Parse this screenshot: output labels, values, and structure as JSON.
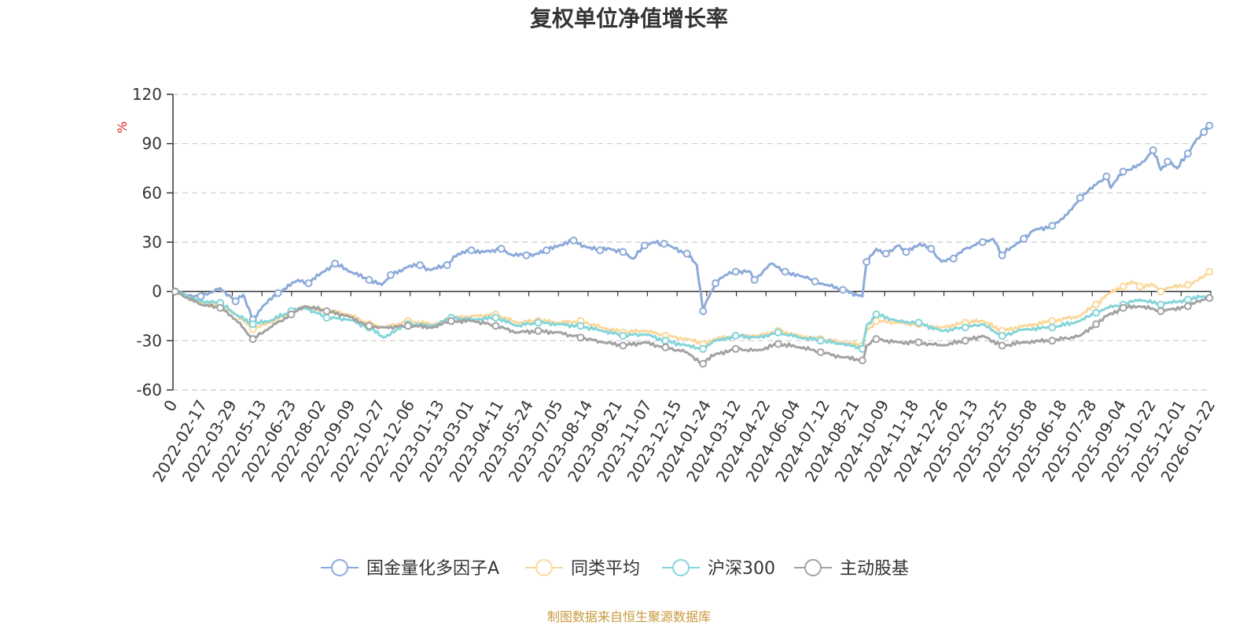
{
  "chart_data": {
    "type": "line",
    "title": "复权单位净值增长率",
    "ylabel": "%",
    "ylim": [
      -60,
      120
    ],
    "yticks": [
      120,
      90,
      60,
      30,
      0,
      -30,
      -60
    ],
    "xlim": [
      "2022-01-01",
      "2026-02-01"
    ],
    "xticks": [
      "0",
      "2022-02-17",
      "2022-03-29",
      "2022-05-13",
      "2022-06-23",
      "2022-08-02",
      "2022-09-09",
      "2022-10-27",
      "2022-12-06",
      "2023-01-13",
      "2023-03-01",
      "2023-04-11",
      "2023-05-24",
      "2023-07-05",
      "2023-08-14",
      "2023-09-21",
      "2023-11-07",
      "2023-12-15",
      "2024-01-24",
      "2024-03-12",
      "2024-04-22",
      "2024-06-04",
      "2024-07-12",
      "2024-08-21",
      "2024-10-09",
      "2024-11-18",
      "2024-12-26",
      "2025-02-13",
      "2025-03-25",
      "2025-05-08",
      "2025-06-18",
      "2025-07-28",
      "2025-09-04",
      "2025-10-22",
      "2025-12-01",
      "2026-01-22"
    ],
    "grid": true,
    "legend_position": "bottom",
    "source": "制图数据来自恒生聚源数据库",
    "series": [
      {
        "name": "国金量化多因子A",
        "color": "#8caad9",
        "points": [
          [
            "2022-01-04",
            0
          ],
          [
            "2022-01-20",
            -2
          ],
          [
            "2022-02-10",
            -3
          ],
          [
            "2022-03-10",
            2
          ],
          [
            "2022-04-01",
            -6
          ],
          [
            "2022-04-12",
            -2
          ],
          [
            "2022-04-26",
            -17
          ],
          [
            "2022-05-10",
            -9
          ],
          [
            "2022-06-01",
            -1
          ],
          [
            "2022-06-30",
            7
          ],
          [
            "2022-07-15",
            5
          ],
          [
            "2022-08-05",
            12
          ],
          [
            "2022-08-22",
            17
          ],
          [
            "2022-09-13",
            12
          ],
          [
            "2022-10-10",
            7
          ],
          [
            "2022-10-28",
            4
          ],
          [
            "2022-11-10",
            10
          ],
          [
            "2022-12-05",
            15
          ],
          [
            "2022-12-22",
            16
          ],
          [
            "2023-01-06",
            13
          ],
          [
            "2023-01-30",
            16
          ],
          [
            "2023-02-15",
            23
          ],
          [
            "2023-03-06",
            25
          ],
          [
            "2023-03-24",
            24
          ],
          [
            "2023-04-18",
            26
          ],
          [
            "2023-05-04",
            22
          ],
          [
            "2023-05-24",
            22
          ],
          [
            "2023-06-08",
            23
          ],
          [
            "2023-06-22",
            25
          ],
          [
            "2023-07-10",
            28
          ],
          [
            "2023-07-31",
            31
          ],
          [
            "2023-08-18",
            27
          ],
          [
            "2023-09-07",
            25
          ],
          [
            "2023-09-21",
            26
          ],
          [
            "2023-10-10",
            24
          ],
          [
            "2023-10-25",
            20
          ],
          [
            "2023-11-10",
            28
          ],
          [
            "2023-11-22",
            30
          ],
          [
            "2023-12-08",
            29
          ],
          [
            "2023-12-20",
            27
          ],
          [
            "2024-01-10",
            23
          ],
          [
            "2024-01-24",
            16
          ],
          [
            "2024-02-02",
            -12
          ],
          [
            "2024-02-08",
            -5
          ],
          [
            "2024-02-20",
            5
          ],
          [
            "2024-03-05",
            10
          ],
          [
            "2024-03-20",
            12
          ],
          [
            "2024-04-10",
            12
          ],
          [
            "2024-04-16",
            7
          ],
          [
            "2024-05-10",
            17
          ],
          [
            "2024-05-30",
            12
          ],
          [
            "2024-06-25",
            9
          ],
          [
            "2024-07-12",
            6
          ],
          [
            "2024-07-30",
            4
          ],
          [
            "2024-08-21",
            1
          ],
          [
            "2024-09-18",
            -3
          ],
          [
            "2024-09-24",
            18
          ],
          [
            "2024-10-08",
            26
          ],
          [
            "2024-10-22",
            23
          ],
          [
            "2024-11-08",
            28
          ],
          [
            "2024-11-20",
            24
          ],
          [
            "2024-12-10",
            29
          ],
          [
            "2024-12-26",
            26
          ],
          [
            "2025-01-10",
            18
          ],
          [
            "2025-01-27",
            20
          ],
          [
            "2025-02-13",
            26
          ],
          [
            "2025-03-10",
            30
          ],
          [
            "2025-03-25",
            32
          ],
          [
            "2025-04-07",
            22
          ],
          [
            "2025-04-20",
            27
          ],
          [
            "2025-05-08",
            32
          ],
          [
            "2025-05-21",
            37
          ],
          [
            "2025-06-18",
            40
          ],
          [
            "2025-07-10",
            47
          ],
          [
            "2025-07-28",
            57
          ],
          [
            "2025-08-20",
            65
          ],
          [
            "2025-09-04",
            70
          ],
          [
            "2025-09-10",
            63
          ],
          [
            "2025-09-28",
            73
          ],
          [
            "2025-10-22",
            77
          ],
          [
            "2025-11-10",
            86
          ],
          [
            "2025-11-21",
            74
          ],
          [
            "2025-12-01",
            79
          ],
          [
            "2025-12-15",
            75
          ],
          [
            "2025-12-30",
            84
          ],
          [
            "2026-01-12",
            93
          ],
          [
            "2026-01-22",
            97
          ],
          [
            "2026-01-30",
            101
          ]
        ]
      },
      {
        "name": "同类平均",
        "color": "#fbd89a",
        "points": [
          [
            "2022-01-04",
            0
          ],
          [
            "2022-02-10",
            -7
          ],
          [
            "2022-03-10",
            -9
          ],
          [
            "2022-04-01",
            -14
          ],
          [
            "2022-04-26",
            -23
          ],
          [
            "2022-05-20",
            -19
          ],
          [
            "2022-06-20",
            -13
          ],
          [
            "2022-07-10",
            -9
          ],
          [
            "2022-08-10",
            -12
          ],
          [
            "2022-09-10",
            -14
          ],
          [
            "2022-10-10",
            -20
          ],
          [
            "2022-11-01",
            -22
          ],
          [
            "2022-12-05",
            -18
          ],
          [
            "2023-01-10",
            -20
          ],
          [
            "2023-02-05",
            -16
          ],
          [
            "2023-03-10",
            -15
          ],
          [
            "2023-04-10",
            -14
          ],
          [
            "2023-05-10",
            -19
          ],
          [
            "2023-06-10",
            -18
          ],
          [
            "2023-07-10",
            -19
          ],
          [
            "2023-08-10",
            -18
          ],
          [
            "2023-09-10",
            -22
          ],
          [
            "2023-10-10",
            -25
          ],
          [
            "2023-11-10",
            -24
          ],
          [
            "2023-12-10",
            -27
          ],
          [
            "2024-01-10",
            -29
          ],
          [
            "2024-02-02",
            -32
          ],
          [
            "2024-02-20",
            -29
          ],
          [
            "2024-03-20",
            -27
          ],
          [
            "2024-04-20",
            -27
          ],
          [
            "2024-05-20",
            -24
          ],
          [
            "2024-06-20",
            -27
          ],
          [
            "2024-07-20",
            -29
          ],
          [
            "2024-08-20",
            -31
          ],
          [
            "2024-09-18",
            -33
          ],
          [
            "2024-09-24",
            -24
          ],
          [
            "2024-10-08",
            -18
          ],
          [
            "2024-11-08",
            -19
          ],
          [
            "2024-12-08",
            -20
          ],
          [
            "2025-01-10",
            -22
          ],
          [
            "2025-02-13",
            -19
          ],
          [
            "2025-03-10",
            -18
          ],
          [
            "2025-04-07",
            -24
          ],
          [
            "2025-05-08",
            -21
          ],
          [
            "2025-06-18",
            -18
          ],
          [
            "2025-07-28",
            -15
          ],
          [
            "2025-08-20",
            -8
          ],
          [
            "2025-09-04",
            -2
          ],
          [
            "2025-09-28",
            3
          ],
          [
            "2025-10-10",
            6
          ],
          [
            "2025-10-22",
            3
          ],
          [
            "2025-11-10",
            4
          ],
          [
            "2025-11-21",
            0
          ],
          [
            "2025-12-01",
            2
          ],
          [
            "2025-12-30",
            4
          ],
          [
            "2026-01-22",
            9
          ],
          [
            "2026-01-30",
            12
          ]
        ]
      },
      {
        "name": "沪深300",
        "color": "#84d5d9",
        "points": [
          [
            "2022-01-04",
            0
          ],
          [
            "2022-02-10",
            -6
          ],
          [
            "2022-03-10",
            -7
          ],
          [
            "2022-04-01",
            -14
          ],
          [
            "2022-04-26",
            -20
          ],
          [
            "2022-05-20",
            -18
          ],
          [
            "2022-06-20",
            -12
          ],
          [
            "2022-07-10",
            -10
          ],
          [
            "2022-08-10",
            -16
          ],
          [
            "2022-09-10",
            -17
          ],
          [
            "2022-10-10",
            -22
          ],
          [
            "2022-10-31",
            -28
          ],
          [
            "2022-12-05",
            -20
          ],
          [
            "2023-01-10",
            -21
          ],
          [
            "2023-02-05",
            -16
          ],
          [
            "2023-03-10",
            -17
          ],
          [
            "2023-04-10",
            -16
          ],
          [
            "2023-05-10",
            -21
          ],
          [
            "2023-06-10",
            -19
          ],
          [
            "2023-07-10",
            -20
          ],
          [
            "2023-08-10",
            -21
          ],
          [
            "2023-09-10",
            -24
          ],
          [
            "2023-10-10",
            -27
          ],
          [
            "2023-11-10",
            -26
          ],
          [
            "2023-12-10",
            -30
          ],
          [
            "2024-01-10",
            -33
          ],
          [
            "2024-02-02",
            -35
          ],
          [
            "2024-02-20",
            -30
          ],
          [
            "2024-03-20",
            -27
          ],
          [
            "2024-04-20",
            -28
          ],
          [
            "2024-05-20",
            -25
          ],
          [
            "2024-06-20",
            -28
          ],
          [
            "2024-07-20",
            -30
          ],
          [
            "2024-08-20",
            -32
          ],
          [
            "2024-09-18",
            -35
          ],
          [
            "2024-09-24",
            -21
          ],
          [
            "2024-10-08",
            -14
          ],
          [
            "2024-11-08",
            -18
          ],
          [
            "2024-12-08",
            -19
          ],
          [
            "2025-01-10",
            -24
          ],
          [
            "2025-02-13",
            -22
          ],
          [
            "2025-03-10",
            -20
          ],
          [
            "2025-04-07",
            -27
          ],
          [
            "2025-05-08",
            -23
          ],
          [
            "2025-06-18",
            -22
          ],
          [
            "2025-07-28",
            -18
          ],
          [
            "2025-08-20",
            -13
          ],
          [
            "2025-09-04",
            -10
          ],
          [
            "2025-09-28",
            -8
          ],
          [
            "2025-10-22",
            -5
          ],
          [
            "2025-11-21",
            -8
          ],
          [
            "2025-12-01",
            -7
          ],
          [
            "2025-12-30",
            -5
          ],
          [
            "2026-01-22",
            -3
          ],
          [
            "2026-01-30",
            -4
          ]
        ]
      },
      {
        "name": "主动股基",
        "color": "#a2a2a2",
        "points": [
          [
            "2022-01-04",
            0
          ],
          [
            "2022-02-10",
            -8
          ],
          [
            "2022-03-10",
            -10
          ],
          [
            "2022-04-01",
            -17
          ],
          [
            "2022-04-26",
            -29
          ],
          [
            "2022-05-20",
            -22
          ],
          [
            "2022-06-20",
            -14
          ],
          [
            "2022-07-10",
            -9
          ],
          [
            "2022-08-10",
            -12
          ],
          [
            "2022-09-10",
            -15
          ],
          [
            "2022-10-10",
            -21
          ],
          [
            "2022-11-01",
            -22
          ],
          [
            "2022-12-05",
            -21
          ],
          [
            "2023-01-10",
            -22
          ],
          [
            "2023-02-05",
            -18
          ],
          [
            "2023-03-10",
            -18
          ],
          [
            "2023-04-10",
            -21
          ],
          [
            "2023-05-10",
            -25
          ],
          [
            "2023-06-10",
            -24
          ],
          [
            "2023-07-10",
            -25
          ],
          [
            "2023-08-10",
            -28
          ],
          [
            "2023-09-10",
            -31
          ],
          [
            "2023-10-10",
            -33
          ],
          [
            "2023-11-10",
            -31
          ],
          [
            "2023-12-10",
            -34
          ],
          [
            "2024-01-10",
            -37
          ],
          [
            "2024-02-02",
            -44
          ],
          [
            "2024-02-20",
            -38
          ],
          [
            "2024-03-20",
            -35
          ],
          [
            "2024-04-20",
            -36
          ],
          [
            "2024-05-20",
            -32
          ],
          [
            "2024-06-20",
            -34
          ],
          [
            "2024-07-20",
            -37
          ],
          [
            "2024-08-20",
            -40
          ],
          [
            "2024-09-18",
            -42
          ],
          [
            "2024-09-24",
            -33
          ],
          [
            "2024-10-08",
            -29
          ],
          [
            "2024-11-08",
            -31
          ],
          [
            "2024-12-08",
            -31
          ],
          [
            "2025-01-10",
            -33
          ],
          [
            "2025-02-13",
            -30
          ],
          [
            "2025-03-10",
            -27
          ],
          [
            "2025-04-07",
            -33
          ],
          [
            "2025-05-08",
            -31
          ],
          [
            "2025-06-18",
            -30
          ],
          [
            "2025-07-28",
            -27
          ],
          [
            "2025-08-20",
            -20
          ],
          [
            "2025-09-04",
            -15
          ],
          [
            "2025-09-28",
            -10
          ],
          [
            "2025-10-22",
            -9
          ],
          [
            "2025-11-21",
            -12
          ],
          [
            "2025-12-01",
            -11
          ],
          [
            "2025-12-30",
            -9
          ],
          [
            "2026-01-22",
            -5
          ],
          [
            "2026-01-30",
            -4
          ]
        ]
      }
    ]
  }
}
